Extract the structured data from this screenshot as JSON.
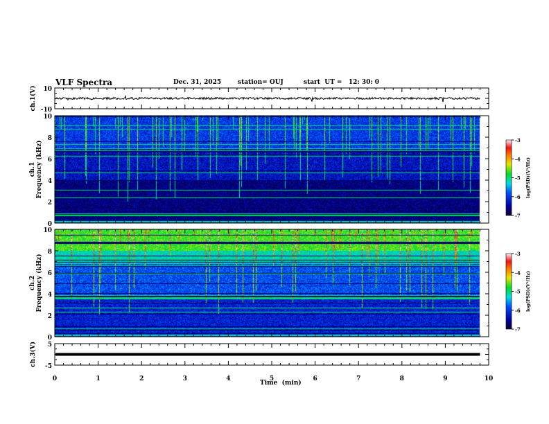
{
  "chart_data": {
    "type": "heatmap",
    "title": "VLF Spectra",
    "date": "Dec. 31, 2025",
    "station": "station= OUJ",
    "start_ut": "start  UT =   12: 30: 0",
    "xlabel": "Time  (min)",
    "xlim": [
      0,
      10
    ],
    "x_ticks": [
      "0",
      "1",
      "2",
      "3",
      "4",
      "5",
      "6",
      "7",
      "8",
      "9",
      "10"
    ],
    "data_end_min": 9.8,
    "panels": [
      {
        "name": "ch1-waveform",
        "type": "line",
        "ylabel": "ch.1(V)",
        "ylim": [
          -10,
          10
        ],
        "y_ticks": [
          "10",
          "-10"
        ],
        "baseline": 0
      },
      {
        "name": "ch1-spectrogram",
        "type": "heatmap",
        "ylabel_1": "ch.1",
        "ylabel_2": "Frequency  (kHz)",
        "ylim": [
          0,
          10
        ],
        "y_ticks": [
          "0",
          "2",
          "4",
          "6",
          "8",
          "10"
        ],
        "colorbar": {
          "label": "log(PSD)(V²/Hz)",
          "range": [
            -7,
            -3
          ],
          "ticks": [
            "-3",
            "-4",
            "-5",
            "-6",
            "-7"
          ]
        }
      },
      {
        "name": "ch2-spectrogram",
        "type": "heatmap",
        "ylabel_1": "ch.2",
        "ylabel_2": "Frequency  (kHz)",
        "ylim": [
          0,
          10
        ],
        "y_ticks": [
          "0",
          "2",
          "4",
          "6",
          "8",
          "10"
        ],
        "colorbar": {
          "label": "log(PSD)(V²/Hz)",
          "range": [
            -7,
            -3
          ],
          "ticks": [
            "-3",
            "-4",
            "-5",
            "-6",
            "-7"
          ]
        }
      },
      {
        "name": "ch3-waveform",
        "type": "line",
        "ylabel": "ch.3(V)",
        "ylim": [
          -5,
          5
        ],
        "y_ticks": [
          "5",
          "-5"
        ],
        "baseline": 0
      }
    ]
  }
}
